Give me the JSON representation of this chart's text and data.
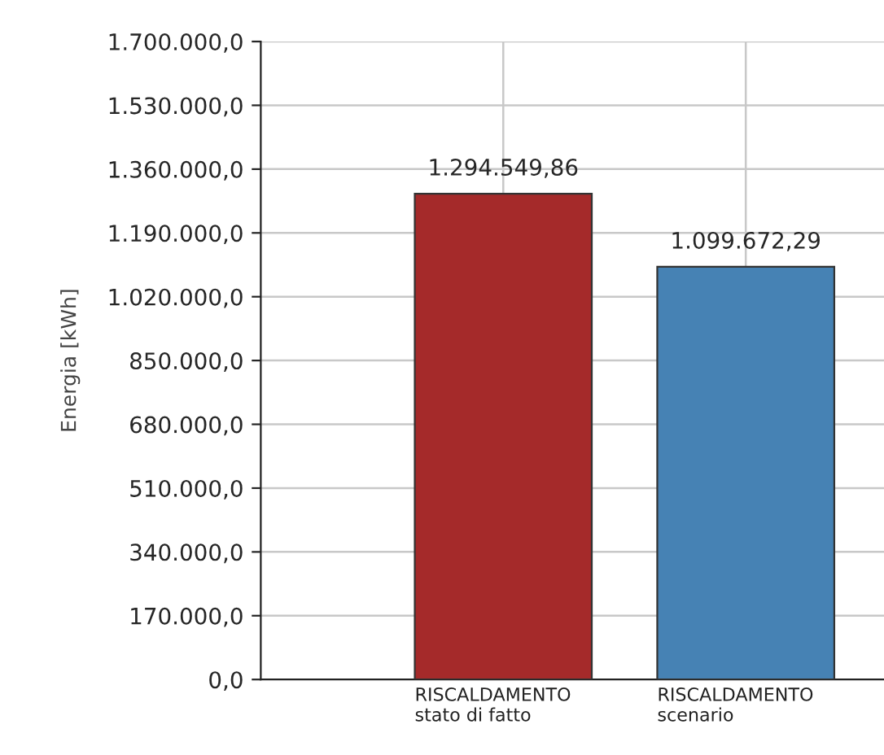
{
  "chart_data": {
    "type": "bar",
    "ylabel": "Energia [kWh]",
    "categories": [
      "RISCALDAMENTO\nstato di fatto",
      "RISCALDAMENTO\nscenario"
    ],
    "values": [
      1294549.86,
      1099672.29
    ],
    "colors": [
      "#a52a2a",
      "#4682b4"
    ],
    "value_labels": [
      "1.294.549,86",
      "1.099.672,29"
    ],
    "ylim": [
      0,
      1700000
    ],
    "yticks": [
      {
        "value": 0,
        "label": "0,0"
      },
      {
        "value": 170000,
        "label": "170.000,0"
      },
      {
        "value": 340000,
        "label": "340.000,0"
      },
      {
        "value": 510000,
        "label": "510.000,0"
      },
      {
        "value": 680000,
        "label": "680.000,0"
      },
      {
        "value": 850000,
        "label": "850.000,0"
      },
      {
        "value": 1020000,
        "label": "1.020.000,0"
      },
      {
        "value": 1190000,
        "label": "1.190.000,0"
      },
      {
        "value": 1360000,
        "label": "1.360.000,0"
      },
      {
        "value": 1530000,
        "label": "1.530.000,0"
      },
      {
        "value": 1700000,
        "label": "1.700.000,0"
      }
    ],
    "grid": true,
    "legend": false
  }
}
